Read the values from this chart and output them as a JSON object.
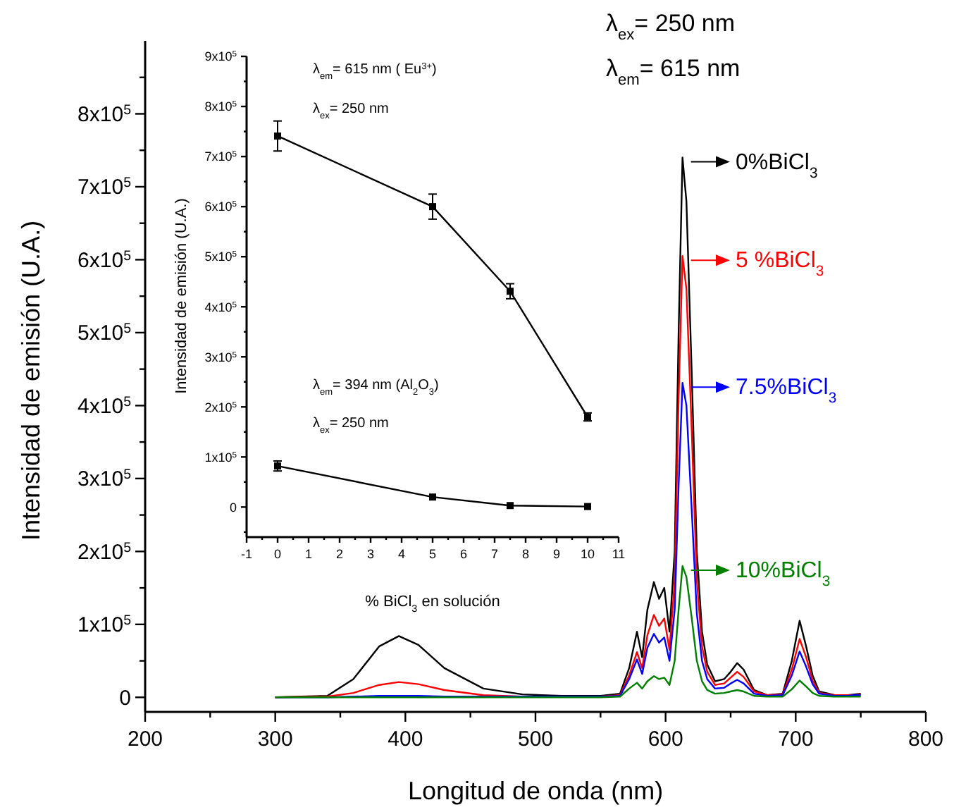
{
  "chart_data": [
    {
      "type": "line",
      "xlabel": "Longitud de onda (nm)",
      "ylabel": "Intensidad de emisión (U.A.)",
      "annotations": [
        "λ$_{ex}$= 250 nm",
        "λ$_{em}$= 615 nm"
      ],
      "x": [
        300,
        340,
        360,
        380,
        395,
        410,
        430,
        460,
        490,
        520,
        550,
        565,
        572,
        578,
        582,
        586,
        591,
        595,
        599,
        603,
        607,
        610,
        613,
        616,
        620,
        624,
        628,
        632,
        638,
        645,
        650,
        655,
        660,
        668,
        678,
        690,
        697,
        703,
        708,
        713,
        718,
        730,
        740,
        745,
        750
      ],
      "series": [
        {
          "name": "0%BiCl$_{3}$",
          "color": "#000000",
          "values": [
            0,
            2000,
            25000,
            70000,
            84000,
            72000,
            40000,
            12000,
            4000,
            2000,
            2000,
            5000,
            40000,
            90000,
            55000,
            120000,
            158000,
            135000,
            150000,
            90000,
            200000,
            500000,
            740000,
            680000,
            450000,
            200000,
            90000,
            45000,
            22000,
            25000,
            35000,
            47000,
            38000,
            10000,
            3000,
            5000,
            50000,
            105000,
            70000,
            30000,
            8000,
            3000,
            3000,
            4000,
            5000
          ]
        },
        {
          "name": "5 %BiCl$_{3}$",
          "color": "#ff0000",
          "values": [
            0,
            1000,
            6000,
            17000,
            21000,
            18000,
            10000,
            3000,
            1000,
            1000,
            1000,
            3000,
            30000,
            62000,
            40000,
            85000,
            113000,
            98000,
            108000,
            65000,
            160000,
            410000,
            605000,
            560000,
            370000,
            160000,
            70000,
            35000,
            17000,
            19000,
            27000,
            35000,
            28000,
            8000,
            3000,
            4000,
            38000,
            80000,
            55000,
            23000,
            6000,
            3000,
            3000,
            3000,
            4000
          ]
        },
        {
          "name": "7.5%BiCl$_{3}$",
          "color": "#0000ff",
          "values": [
            0,
            0,
            1000,
            2000,
            2000,
            2000,
            1000,
            1000,
            1000,
            1000,
            1000,
            2000,
            25000,
            52000,
            32000,
            68000,
            87000,
            75000,
            82000,
            50000,
            120000,
            290000,
            431000,
            400000,
            260000,
            115000,
            50000,
            25000,
            12000,
            13000,
            19000,
            24000,
            19000,
            5000,
            2000,
            3000,
            30000,
            63000,
            42000,
            18000,
            5000,
            2000,
            2000,
            3000,
            3000
          ]
        },
        {
          "name": "10%BiCl$_{3}$",
          "color": "#008000",
          "values": [
            0,
            0,
            0,
            0,
            0,
            0,
            0,
            0,
            0,
            0,
            0,
            1000,
            12000,
            20000,
            12000,
            22000,
            29000,
            25000,
            27000,
            17000,
            50000,
            120000,
            180000,
            165000,
            110000,
            50000,
            22000,
            10000,
            5000,
            6000,
            8000,
            10000,
            8000,
            2000,
            1000,
            1000,
            11000,
            23000,
            15000,
            6000,
            2000,
            1000,
            1000,
            1000,
            1000
          ]
        }
      ],
      "xlim": [
        200,
        800
      ],
      "xticks": [
        200,
        {
          "value": 250,
          "label": null
        },
        300,
        {
          "value": 350,
          "label": null
        },
        400,
        {
          "value": 450,
          "label": null
        },
        500,
        {
          "value": 550,
          "label": null
        },
        600,
        {
          "value": 650,
          "label": null
        },
        700,
        {
          "value": 750,
          "label": null
        },
        800
      ],
      "ylim": [
        -20000,
        900000
      ],
      "yticks": [
        {
          "value": 0,
          "label": "0"
        },
        {
          "value": 50000,
          "label": null
        },
        {
          "value": 100000,
          "label": "1x10$^{5}$"
        },
        {
          "value": 150000,
          "label": null
        },
        {
          "value": 200000,
          "label": "2x10$^{5}$"
        },
        {
          "value": 250000,
          "label": null
        },
        {
          "value": 300000,
          "label": "3x10$^{5}$"
        },
        {
          "value": 350000,
          "label": null
        },
        {
          "value": 400000,
          "label": "4x10$^{5}$"
        },
        {
          "value": 450000,
          "label": null
        },
        {
          "value": 500000,
          "label": "5x10$^{5}$"
        },
        {
          "value": 550000,
          "label": null
        },
        {
          "value": 600000,
          "label": "6x10$^{5}$"
        },
        {
          "value": 650000,
          "label": null
        },
        {
          "value": 700000,
          "label": "7x10$^{5}$"
        },
        {
          "value": 750000,
          "label": null
        },
        {
          "value": 800000,
          "label": "8x10$^{5}$"
        },
        {
          "value": 850000,
          "label": null
        }
      ],
      "grid": false,
      "legend": "right",
      "marker": "none",
      "line_style": "solid"
    },
    {
      "type": "line",
      "xlabel": "% BiCl$_{3}$ en solución",
      "ylabel": "Intensidad de emisión (U.A.)",
      "annotations": [
        "λ$_{em}$= 615 nm ( Eu$^{3+}$)",
        "λ$_{ex}$= 250 nm",
        "λ$_{em}$= 394 nm  (Al$_{2}$O$_{3}$)",
        "λ$_{ex}$= 250 nm"
      ],
      "x": [
        0,
        5,
        7.5,
        10
      ],
      "series": [
        {
          "color": "#000000",
          "values": [
            741000,
            600000,
            431000,
            180000
          ],
          "errors": [
            30000,
            25000,
            15000,
            8000
          ]
        },
        {
          "color": "#000000",
          "values": [
            82000,
            20000,
            3000,
            1000
          ],
          "errors": [
            10000,
            null,
            null,
            null
          ]
        }
      ],
      "xlim": [
        -1,
        11
      ],
      "xticks": [
        -1,
        {
          "value": -0.5,
          "label": null
        },
        0,
        {
          "value": 0.5,
          "label": null
        },
        1,
        {
          "value": 1.5,
          "label": null
        },
        2,
        {
          "value": 2.5,
          "label": null
        },
        3,
        {
          "value": 3.5,
          "label": null
        },
        4,
        {
          "value": 4.5,
          "label": null
        },
        5,
        {
          "value": 5.5,
          "label": null
        },
        6,
        {
          "value": 6.5,
          "label": null
        },
        7,
        {
          "value": 7.5,
          "label": null
        },
        8,
        {
          "value": 8.5,
          "label": null
        },
        9,
        {
          "value": 9.5,
          "label": null
        },
        10,
        {
          "value": 10.5,
          "label": null
        },
        11
      ],
      "ylim": [
        -60000,
        900000
      ],
      "yticks": [
        {
          "value": -50000,
          "label": null
        },
        {
          "value": 0,
          "label": "0"
        },
        {
          "value": 50000,
          "label": null
        },
        {
          "value": 100000,
          "label": "1x10$^{5}$"
        },
        {
          "value": 150000,
          "label": null
        },
        {
          "value": 200000,
          "label": "2x10$^{5}$"
        },
        {
          "value": 250000,
          "label": null
        },
        {
          "value": 300000,
          "label": "3x10$^{5}$"
        },
        {
          "value": 350000,
          "label": null
        },
        {
          "value": 400000,
          "label": "4x10$^{5}$"
        },
        {
          "value": 450000,
          "label": null
        },
        {
          "value": 500000,
          "label": "5x10$^{5}$"
        },
        {
          "value": 550000,
          "label": null
        },
        {
          "value": 600000,
          "label": "6x10$^{5}$"
        },
        {
          "value": 650000,
          "label": null
        },
        {
          "value": 700000,
          "label": "7x10$^{5}$"
        },
        {
          "value": 750000,
          "label": null
        },
        {
          "value": 800000,
          "label": "8x10$^{5}$"
        },
        {
          "value": 850000,
          "label": null
        },
        {
          "value": 900000,
          "label": "9x10$^{5}$"
        }
      ],
      "grid": false,
      "marker": "square",
      "line_style": "solid"
    }
  ]
}
